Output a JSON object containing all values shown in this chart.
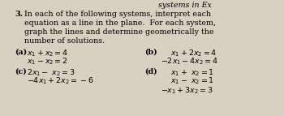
{
  "bg_color": "#d8d0c0",
  "font_size": 6.8,
  "font_size_bold": 6.8,
  "top_text": "systems in Ex",
  "number": "3.",
  "intro_line1": "In each of the following systems, interpret each",
  "intro_line2": "equation as a line in the plane.  For each system,",
  "intro_line3": "graph the lines and determine geometrically the",
  "intro_line4": "number of solutions.",
  "a_label": "(a)",
  "a_line1": "x_1 + x_2 = 4",
  "a_line2": "x_1 - x_2 = 2",
  "b_label": "(b)",
  "b_line1": "x_1 + 2x_2 = 4",
  "b_line2": "-2x_1 - 4x_2 = 4",
  "c_label": "(c)",
  "c_line1": "2x_1 - \\ x_2 = 3",
  "c_line2": "-4x_1 + 2x_2 = -6",
  "d_label": "(d)",
  "d_line1": "x_1 + \\ x_2 = 1",
  "d_line2": "x_1 - \\ x_2 = 1",
  "d_line3": "-x_1 + 3x_2 = 3"
}
